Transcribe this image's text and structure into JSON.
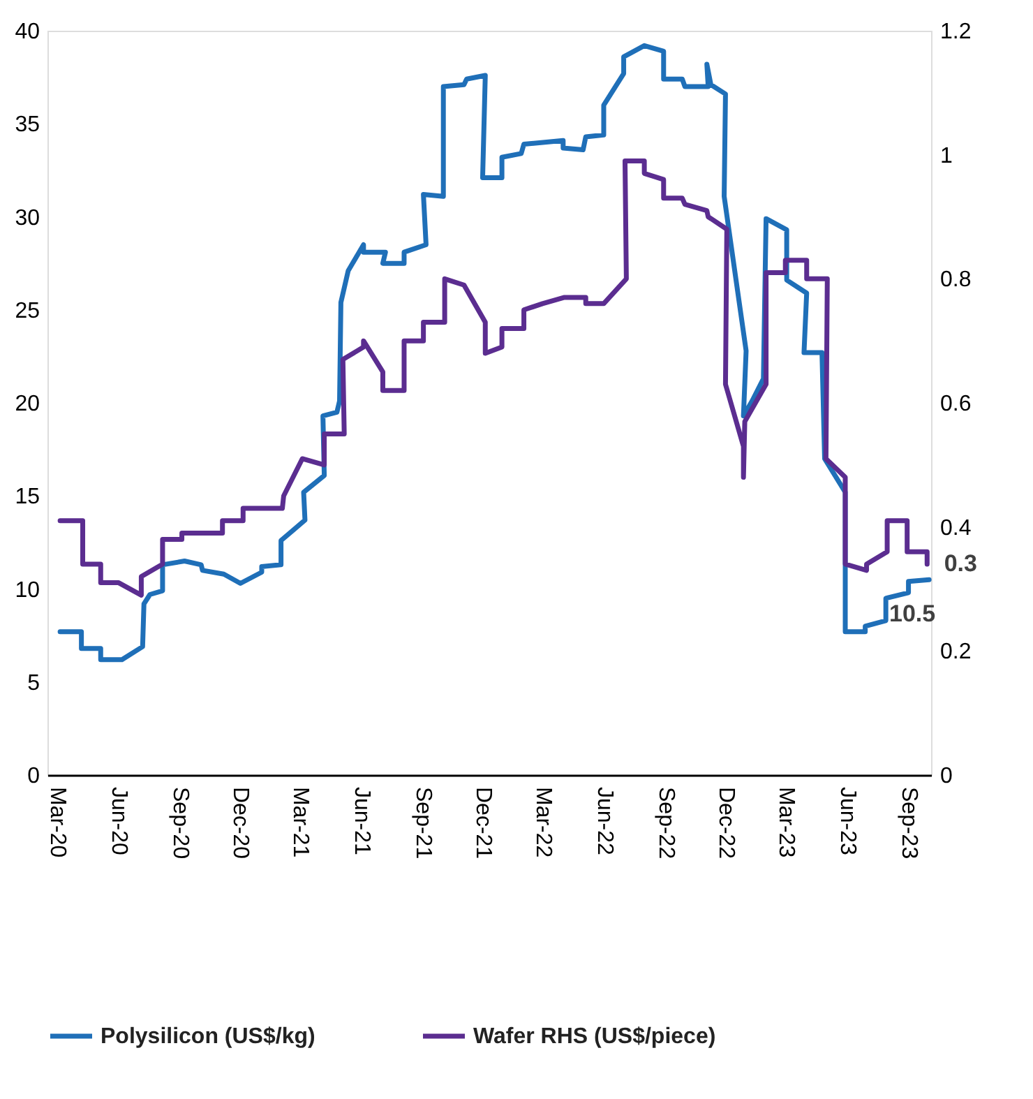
{
  "chart_data": {
    "type": "line",
    "xlim": [
      "2020-02-15",
      "2023-10-05"
    ],
    "xticks": [
      {
        "value": "2020-03-01",
        "label": "Mar-20"
      },
      {
        "value": "2020-06-01",
        "label": "Jun-20"
      },
      {
        "value": "2020-09-01",
        "label": "Sep-20"
      },
      {
        "value": "2020-12-01",
        "label": "Dec-20"
      },
      {
        "value": "2021-03-01",
        "label": "Mar-21"
      },
      {
        "value": "2021-06-01",
        "label": "Jun-21"
      },
      {
        "value": "2021-09-01",
        "label": "Sep-21"
      },
      {
        "value": "2021-12-01",
        "label": "Dec-21"
      },
      {
        "value": "2022-03-01",
        "label": "Mar-22"
      },
      {
        "value": "2022-06-01",
        "label": "Jun-22"
      },
      {
        "value": "2022-09-01",
        "label": "Sep-22"
      },
      {
        "value": "2022-12-01",
        "label": "Dec-22"
      },
      {
        "value": "2023-03-01",
        "label": "Mar-23"
      },
      {
        "value": "2023-06-01",
        "label": "Jun-23"
      },
      {
        "value": "2023-09-01",
        "label": "Sep-23"
      }
    ],
    "ylim": [
      0,
      40
    ],
    "yticks": [
      0,
      5,
      10,
      15,
      20,
      25,
      30,
      35,
      40
    ],
    "y2lim": [
      0,
      1.2
    ],
    "y2ticks": [
      0,
      0.2,
      0.4,
      0.6,
      0.8,
      1,
      1.2
    ],
    "grid": false,
    "legend": "bottom",
    "marker": "none",
    "line_style": "solid",
    "series": [
      {
        "name": "Polysilicon (US$/kg)",
        "color": "#1f6fb8",
        "x": [
          "2020-03-05",
          "2020-04-06",
          "2020-04-06",
          "2020-05-05",
          "2020-05-05",
          "2020-06-06",
          "2020-07-07",
          "2020-07-09",
          "2020-07-18",
          "2020-08-06",
          "2020-08-06",
          "2020-09-08",
          "2020-10-03",
          "2020-10-05",
          "2020-11-06",
          "2020-12-01",
          "2021-01-02",
          "2021-01-02",
          "2021-01-31",
          "2021-01-31",
          "2021-03-08",
          "2021-03-06",
          "2021-04-06",
          "2021-04-04",
          "2021-04-25",
          "2021-04-29",
          "2021-05-01",
          "2021-05-12",
          "2021-06-04",
          "2021-06-04",
          "2021-07-07",
          "2021-07-03",
          "2021-08-04",
          "2021-08-04",
          "2021-09-06",
          "2021-09-02",
          "2021-10-02",
          "2021-10-02",
          "2021-11-02",
          "2021-11-06",
          "2021-12-04",
          "2021-11-30",
          "2021-12-29",
          "2021-12-29",
          "2022-01-27",
          "2022-01-31",
          "2022-03-31",
          "2022-03-31",
          "2022-04-30",
          "2022-05-04",
          "2022-05-31",
          "2022-05-31",
          "2022-06-30",
          "2022-06-30",
          "2022-07-31",
          "2022-08-29",
          "2022-08-29",
          "2022-09-26",
          "2022-09-30",
          "2022-11-04",
          "2022-11-02",
          "2022-11-08",
          "2022-11-30",
          "2022-11-28",
          "2022-12-23",
          "2022-12-31",
          "2022-12-27",
          "2023-01-09",
          "2023-01-26",
          "2023-01-30",
          "2023-03-02",
          "2023-03-02",
          "2023-04-01",
          "2023-03-28",
          "2023-04-24",
          "2023-04-28",
          "2023-05-29",
          "2023-05-29",
          "2023-06-28",
          "2023-06-28",
          "2023-07-29",
          "2023-07-29",
          "2023-09-01",
          "2023-09-01",
          "2023-10-02"
        ],
        "values": [
          7.7,
          7.7,
          6.8,
          6.8,
          6.2,
          6.2,
          6.9,
          9.2,
          9.7,
          9.9,
          11.3,
          11.5,
          11.3,
          11.0,
          10.8,
          10.3,
          10.9,
          11.2,
          11.3,
          12.6,
          13.7,
          15.2,
          16.1,
          19.3,
          19.5,
          20.1,
          25.4,
          27.1,
          28.5,
          28.1,
          28.1,
          27.5,
          27.5,
          28.1,
          28.5,
          31.2,
          31.1,
          37.0,
          37.1,
          37.4,
          37.6,
          32.1,
          32.1,
          33.2,
          33.4,
          33.9,
          34.1,
          33.7,
          33.6,
          34.3,
          34.4,
          36.0,
          37.7,
          38.6,
          39.2,
          38.9,
          37.4,
          37.4,
          37.0,
          37.0,
          38.2,
          37.1,
          36.6,
          31.1,
          24.8,
          22.8,
          19.3,
          20.1,
          21.3,
          29.9,
          29.3,
          26.6,
          25.9,
          22.7,
          22.7,
          17.0,
          15.2,
          7.7,
          7.7,
          8.0,
          8.3,
          9.5,
          9.8,
          10.4,
          10.5
        ],
        "value_labels": [
          null,
          null,
          null,
          null,
          null,
          null,
          null,
          null,
          null,
          null,
          null,
          null,
          null,
          null,
          null,
          null,
          null,
          null,
          null,
          null,
          null,
          null,
          null,
          null,
          null,
          null,
          null,
          null,
          null,
          null,
          null,
          null,
          null,
          null,
          null,
          null,
          null,
          null,
          null,
          null,
          null,
          null,
          null,
          null,
          null,
          null,
          null,
          null,
          null,
          null,
          null,
          null,
          null,
          null,
          null,
          null,
          null,
          null,
          null,
          null,
          null,
          null,
          null,
          null,
          null,
          null,
          null,
          null,
          null,
          null,
          null,
          null,
          null,
          null,
          null,
          null,
          null,
          null,
          null,
          null,
          null,
          null,
          null,
          null,
          "10.5"
        ]
      },
      {
        "name": "Wafer RHS (US$/piece)",
        "color": "#5b2d90",
        "axis": "y2",
        "x": [
          "2020-03-05",
          "2020-04-08",
          "2020-04-08",
          "2020-05-05",
          "2020-05-05",
          "2020-06-01",
          "2020-07-05",
          "2020-07-05",
          "2020-08-06",
          "2020-08-06",
          "2020-09-04",
          "2020-09-04",
          "2020-11-04",
          "2020-11-04",
          "2020-12-05",
          "2020-12-05",
          "2021-02-02",
          "2021-02-04",
          "2021-03-04",
          "2021-04-06",
          "2021-04-06",
          "2021-05-06",
          "2021-05-04",
          "2021-06-04",
          "2021-06-04",
          "2021-07-03",
          "2021-07-03",
          "2021-08-04",
          "2021-08-04",
          "2021-09-02",
          "2021-09-02",
          "2021-10-04",
          "2021-10-04",
          "2021-11-02",
          "2021-12-04",
          "2021-12-04",
          "2021-12-29",
          "2021-12-29",
          "2022-01-31",
          "2022-01-31",
          "2022-02-28",
          "2022-04-02",
          "2022-05-04",
          "2022-05-04",
          "2022-05-31",
          "2022-07-04",
          "2022-07-02",
          "2022-07-31",
          "2022-07-31",
          "2022-08-29",
          "2022-08-29",
          "2022-09-26",
          "2022-09-30",
          "2022-11-02",
          "2022-11-04",
          "2022-12-02",
          "2022-11-30",
          "2022-12-27",
          "2022-12-27",
          "2022-12-29",
          "2023-01-30",
          "2023-01-30",
          "2023-02-28",
          "2023-02-28",
          "2023-04-01",
          "2023-04-01",
          "2023-05-02",
          "2023-04-30",
          "2023-05-29",
          "2023-05-29",
          "2023-06-30",
          "2023-06-30",
          "2023-07-31",
          "2023-07-31",
          "2023-08-30",
          "2023-08-30",
          "2023-09-29",
          "2023-09-29"
        ],
        "values": [
          0.41,
          0.41,
          0.34,
          0.34,
          0.31,
          0.31,
          0.29,
          0.32,
          0.34,
          0.38,
          0.38,
          0.39,
          0.39,
          0.41,
          0.41,
          0.43,
          0.43,
          0.45,
          0.51,
          0.5,
          0.55,
          0.55,
          0.67,
          0.69,
          0.7,
          0.65,
          0.62,
          0.62,
          0.7,
          0.7,
          0.73,
          0.73,
          0.8,
          0.79,
          0.73,
          0.68,
          0.69,
          0.72,
          0.72,
          0.75,
          0.76,
          0.77,
          0.77,
          0.76,
          0.76,
          0.8,
          0.99,
          0.99,
          0.97,
          0.96,
          0.93,
          0.93,
          0.92,
          0.91,
          0.9,
          0.88,
          0.63,
          0.53,
          0.48,
          0.57,
          0.63,
          0.81,
          0.81,
          0.83,
          0.83,
          0.8,
          0.8,
          0.51,
          0.48,
          0.34,
          0.33,
          0.34,
          0.36,
          0.41,
          0.41,
          0.36,
          0.36,
          0.34
        ],
        "value_labels": [
          null,
          null,
          null,
          null,
          null,
          null,
          null,
          null,
          null,
          null,
          null,
          null,
          null,
          null,
          null,
          null,
          null,
          null,
          null,
          null,
          null,
          null,
          null,
          null,
          null,
          null,
          null,
          null,
          null,
          null,
          null,
          null,
          null,
          null,
          null,
          null,
          null,
          null,
          null,
          null,
          null,
          null,
          null,
          null,
          null,
          null,
          null,
          null,
          null,
          null,
          null,
          null,
          null,
          null,
          null,
          null,
          null,
          null,
          null,
          null,
          null,
          null,
          null,
          null,
          null,
          null,
          null,
          null,
          null,
          null,
          null,
          null,
          null,
          null,
          null,
          null,
          null,
          "0.3"
        ]
      }
    ]
  }
}
